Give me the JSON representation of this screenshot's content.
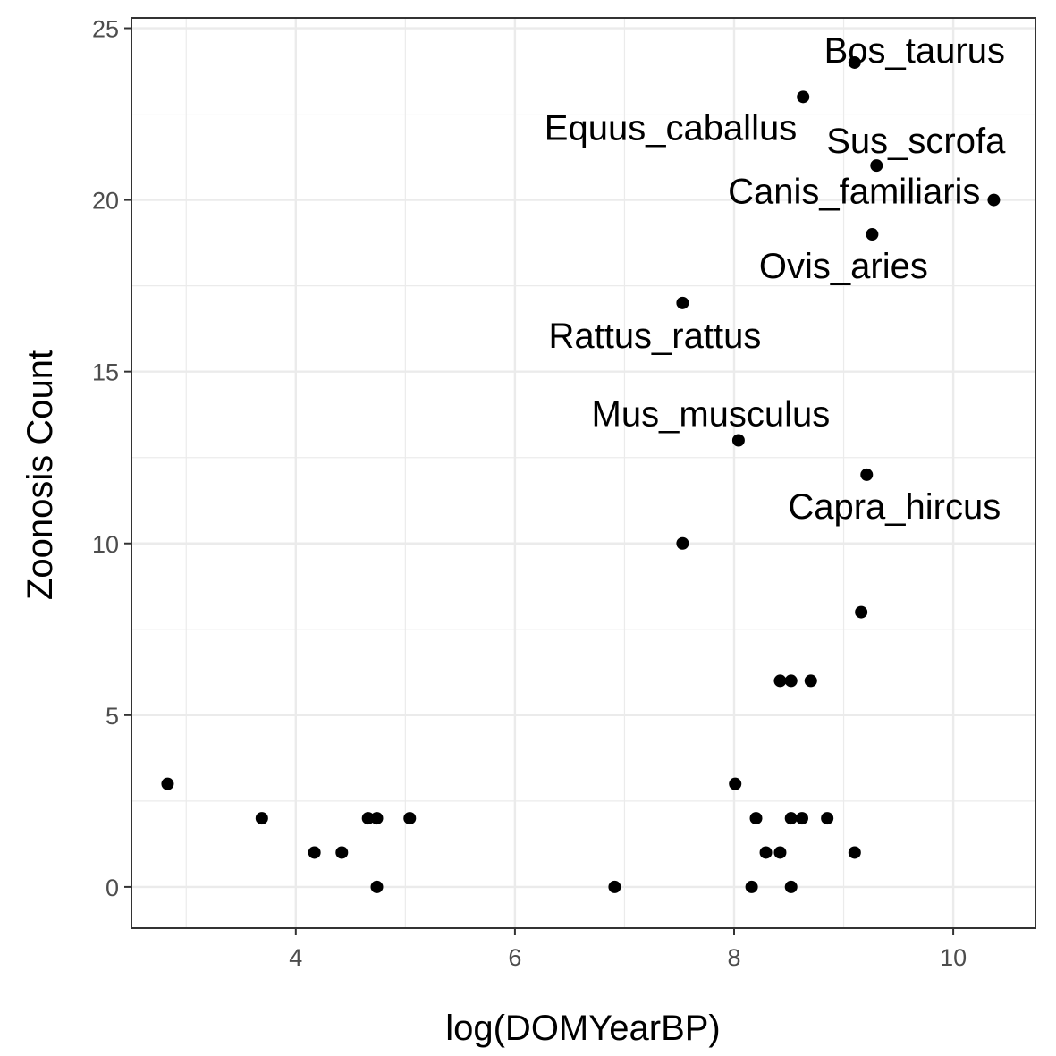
{
  "chart_data": {
    "type": "scatter",
    "xlabel": "log(DOMYearBP)",
    "ylabel": "Zoonosis Count",
    "xlim": [
      2.5,
      10.75
    ],
    "ylim": [
      -1.2,
      25.3
    ],
    "x_ticks": [
      4,
      6,
      8,
      10
    ],
    "y_ticks": [
      0,
      5,
      10,
      15,
      20,
      25
    ],
    "x_tick_labels": [
      "4",
      "6",
      "8",
      "10"
    ],
    "y_tick_labels": [
      "0",
      "5",
      "10",
      "15",
      "20",
      "25"
    ],
    "grid": true,
    "point_color": "#000000",
    "points": [
      {
        "x": 9.1,
        "y": 24,
        "label": "Bos_taurus"
      },
      {
        "x": 8.63,
        "y": 23,
        "label": "Equus_caballus"
      },
      {
        "x": 9.3,
        "y": 21,
        "label": "Sus_scrofa"
      },
      {
        "x": 10.37,
        "y": 20,
        "label": "Canis_familiaris"
      },
      {
        "x": 9.26,
        "y": 19,
        "label": "Ovis_aries"
      },
      {
        "x": 7.53,
        "y": 17,
        "label": "Rattus_rattus"
      },
      {
        "x": 8.04,
        "y": 13,
        "label": "Mus_musculus"
      },
      {
        "x": 9.21,
        "y": 12,
        "label": "Capra_hircus"
      },
      {
        "x": 7.53,
        "y": 10
      },
      {
        "x": 9.16,
        "y": 8
      },
      {
        "x": 8.42,
        "y": 6
      },
      {
        "x": 8.52,
        "y": 6
      },
      {
        "x": 8.7,
        "y": 6
      },
      {
        "x": 2.83,
        "y": 3
      },
      {
        "x": 8.01,
        "y": 3
      },
      {
        "x": 3.69,
        "y": 2
      },
      {
        "x": 4.66,
        "y": 2
      },
      {
        "x": 4.74,
        "y": 2
      },
      {
        "x": 5.04,
        "y": 2
      },
      {
        "x": 8.2,
        "y": 2
      },
      {
        "x": 8.52,
        "y": 2
      },
      {
        "x": 8.62,
        "y": 2
      },
      {
        "x": 8.85,
        "y": 2
      },
      {
        "x": 4.17,
        "y": 1
      },
      {
        "x": 4.42,
        "y": 1
      },
      {
        "x": 8.29,
        "y": 1
      },
      {
        "x": 8.42,
        "y": 1
      },
      {
        "x": 9.1,
        "y": 1
      },
      {
        "x": 4.74,
        "y": 0
      },
      {
        "x": 6.91,
        "y": 0
      },
      {
        "x": 8.16,
        "y": 0
      },
      {
        "x": 8.52,
        "y": 0
      }
    ]
  }
}
